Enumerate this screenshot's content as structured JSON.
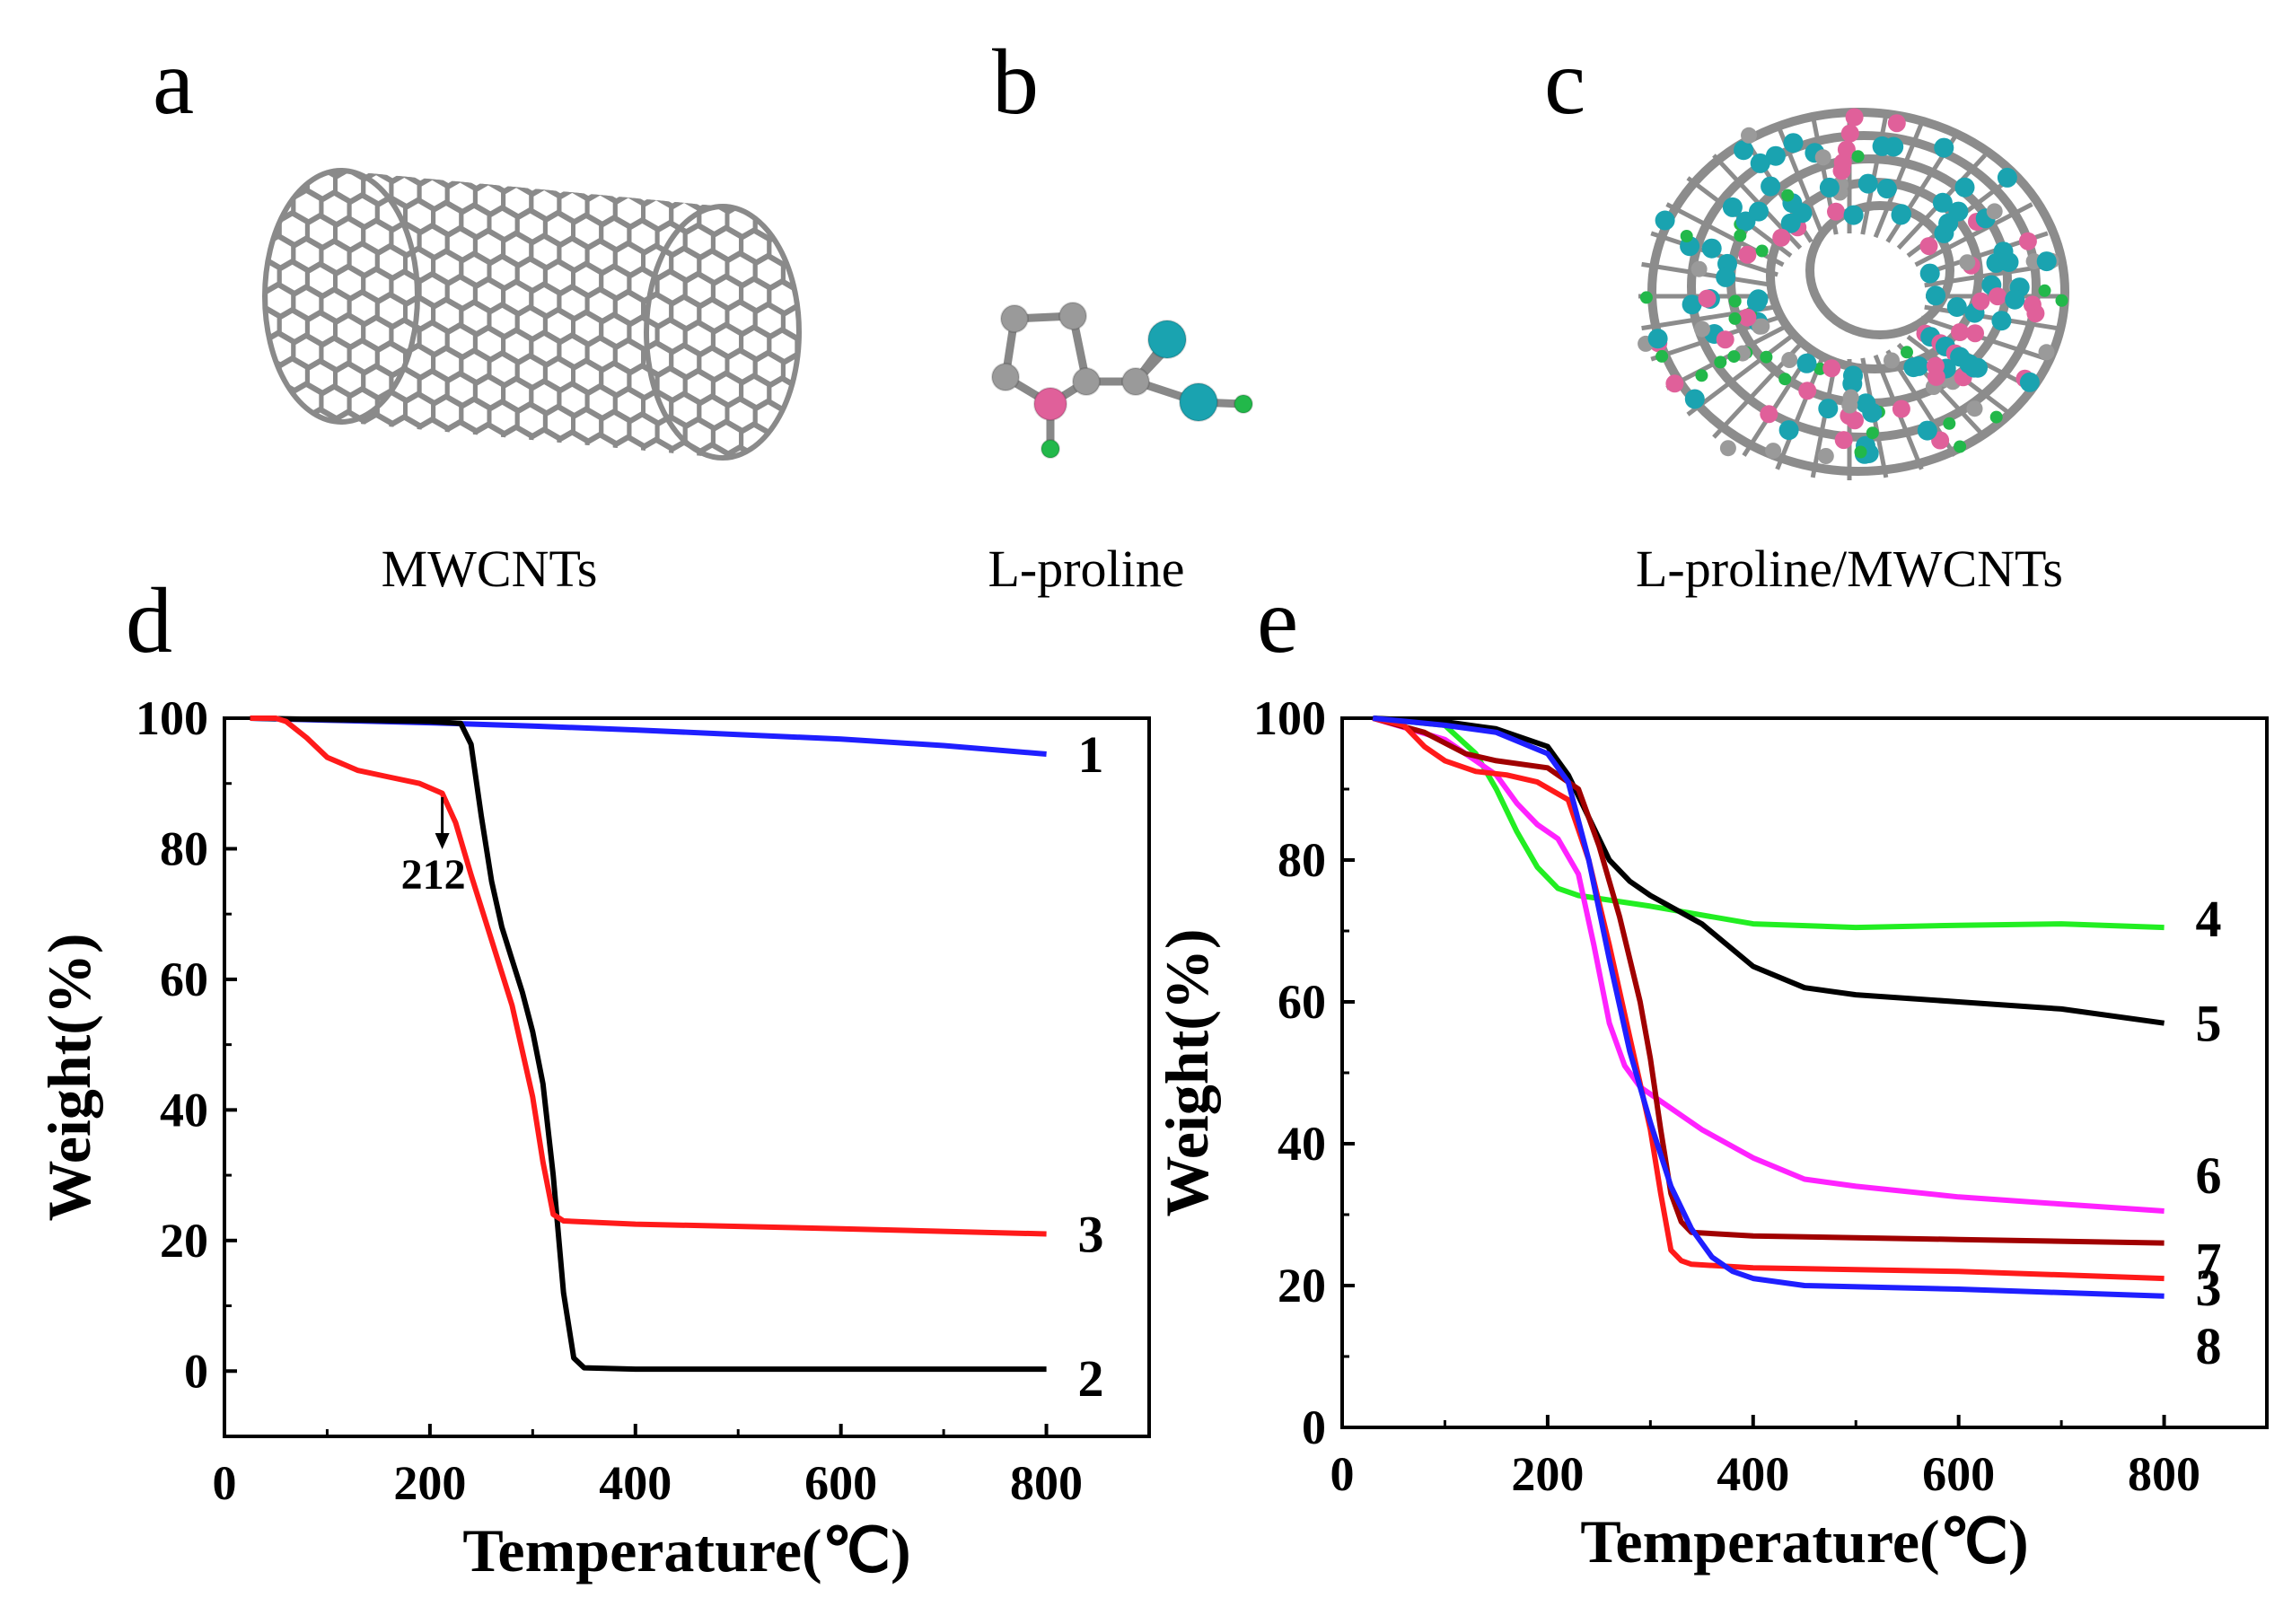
{
  "panels": {
    "a": {
      "letter": "a",
      "caption": "MWCNTs"
    },
    "b": {
      "letter": "b",
      "caption": "L-proline"
    },
    "c": {
      "letter": "c",
      "caption": "L-proline/MWCNTs"
    },
    "d": {
      "letter": "d"
    },
    "e": {
      "letter": "e"
    }
  },
  "colors": {
    "nanotube": "#8a8a8a",
    "nitrogen": "#e0609a",
    "oxygen": "#1aa3b0",
    "hydrogen": "#22b84a",
    "carbon": "#9a9a9a"
  },
  "chart_data": [
    {
      "type": "line",
      "panel": "d",
      "xlabel": "Temperature(℃)",
      "ylabel": "Weight(%)",
      "xlim": [
        0,
        900
      ],
      "ylim": [
        -10,
        100
      ],
      "xticks": [
        0,
        200,
        400,
        600,
        800
      ],
      "yticks": [
        0,
        20,
        40,
        60,
        80,
        100
      ],
      "annotation": {
        "text": "212",
        "x": 212,
        "y": 89
      },
      "series": [
        {
          "name": "1",
          "color": "#1f1fff",
          "x": [
            25,
            100,
            200,
            300,
            400,
            500,
            600,
            700,
            800
          ],
          "y": [
            100,
            99.7,
            99.3,
            98.8,
            98.2,
            97.5,
            96.8,
            95.8,
            94.5
          ]
        },
        {
          "name": "2",
          "color": "#000000",
          "x": [
            25,
            100,
            200,
            230,
            240,
            250,
            260,
            270,
            280,
            290,
            300,
            310,
            320,
            330,
            340,
            350,
            400,
            600,
            800
          ],
          "y": [
            100,
            99.8,
            99.5,
            99.2,
            96,
            85,
            75,
            68,
            63,
            58,
            52,
            44,
            30,
            12,
            2,
            0.5,
            0.3,
            0.3,
            0.3
          ]
        },
        {
          "name": "3",
          "color": "#ff1a1a",
          "x": [
            25,
            50,
            60,
            80,
            100,
            130,
            160,
            190,
            212,
            225,
            240,
            260,
            280,
            300,
            310,
            320,
            330,
            400,
            600,
            800
          ],
          "y": [
            100,
            100,
            99.5,
            97,
            94,
            92,
            91,
            90,
            88.5,
            84,
            76,
            66,
            56,
            42,
            32,
            24,
            23,
            22.5,
            21.8,
            21
          ]
        }
      ]
    },
    {
      "type": "line",
      "panel": "e",
      "xlabel": "Temperature(℃)",
      "ylabel": "Weight(%)",
      "xlim": [
        0,
        900
      ],
      "ylim": [
        0,
        100
      ],
      "xticks": [
        0,
        200,
        400,
        600,
        800
      ],
      "yticks": [
        0,
        20,
        40,
        60,
        80,
        100
      ],
      "series": [
        {
          "name": "4",
          "color": "#22ee22",
          "x": [
            30,
            100,
            130,
            150,
            170,
            190,
            210,
            230,
            300,
            400,
            500,
            600,
            700,
            800
          ],
          "y": [
            100,
            99,
            95,
            90,
            84,
            79,
            76,
            75,
            73.5,
            71,
            70.5,
            70.8,
            71,
            70.5
          ]
        },
        {
          "name": "5",
          "color": "#000000",
          "x": [
            30,
            100,
            150,
            200,
            220,
            240,
            260,
            280,
            300,
            350,
            400,
            450,
            500,
            600,
            700,
            800
          ],
          "y": [
            100,
            99.5,
            98.5,
            96,
            92,
            86,
            80,
            77,
            75,
            71,
            65,
            62,
            61,
            60,
            59,
            57
          ]
        },
        {
          "name": "6",
          "color": "#ff22ff",
          "x": [
            30,
            100,
            150,
            170,
            190,
            210,
            230,
            245,
            260,
            275,
            290,
            310,
            350,
            400,
            450,
            500,
            600,
            700,
            800
          ],
          "y": [
            100,
            97,
            92,
            88,
            85,
            83,
            78,
            68,
            57,
            51,
            48,
            46,
            42,
            38,
            35,
            34,
            32.5,
            31.5,
            30.5
          ]
        },
        {
          "name": "7",
          "color": "#a00000",
          "x": [
            30,
            80,
            120,
            150,
            200,
            230,
            250,
            270,
            290,
            300,
            310,
            320,
            330,
            340,
            400,
            600,
            800
          ],
          "y": [
            100,
            98,
            95,
            94,
            93,
            90,
            82,
            72,
            60,
            52,
            42,
            33,
            29,
            27.5,
            27,
            26.5,
            26
          ]
        },
        {
          "name": "3",
          "color": "#ff1a1a",
          "x": [
            30,
            60,
            80,
            100,
            130,
            160,
            190,
            220,
            240,
            260,
            280,
            300,
            310,
            320,
            330,
            340,
            400,
            600,
            800
          ],
          "y": [
            100,
            99,
            96,
            94,
            92.5,
            92,
            91,
            88.5,
            80,
            68,
            55,
            42,
            33,
            25,
            23.5,
            23,
            22.5,
            22,
            21
          ]
        },
        {
          "name": "8",
          "color": "#1f1fff",
          "x": [
            30,
            100,
            150,
            200,
            220,
            240,
            260,
            280,
            300,
            320,
            340,
            360,
            380,
            400,
            450,
            600,
            800
          ],
          "y": [
            100,
            99,
            98,
            95,
            91,
            80,
            66,
            53,
            43,
            34,
            28,
            24,
            22,
            21,
            20,
            19.5,
            18.5
          ]
        }
      ]
    }
  ]
}
